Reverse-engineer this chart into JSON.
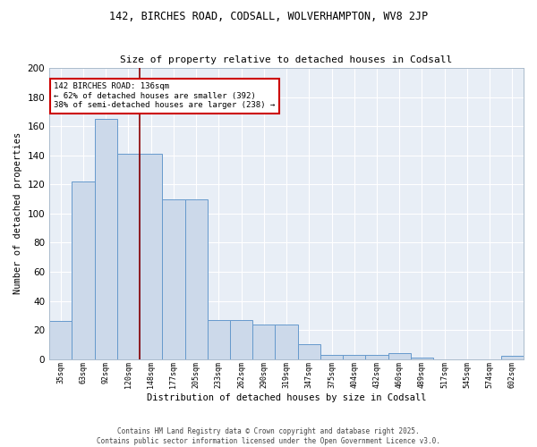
{
  "title1": "142, BIRCHES ROAD, CODSALL, WOLVERHAMPTON, WV8 2JP",
  "title2": "Size of property relative to detached houses in Codsall",
  "xlabel": "Distribution of detached houses by size in Codsall",
  "ylabel": "Number of detached properties",
  "bar_values": [
    26,
    122,
    165,
    141,
    141,
    110,
    110,
    27,
    27,
    24,
    24,
    10,
    3,
    3,
    3,
    4,
    1,
    0,
    0,
    0,
    2
  ],
  "categories": [
    "35sqm",
    "63sqm",
    "92sqm",
    "120sqm",
    "148sqm",
    "177sqm",
    "205sqm",
    "233sqm",
    "262sqm",
    "290sqm",
    "319sqm",
    "347sqm",
    "375sqm",
    "404sqm",
    "432sqm",
    "460sqm",
    "489sqm",
    "517sqm",
    "545sqm",
    "574sqm",
    "602sqm"
  ],
  "bar_color": "#ccd9ea",
  "bar_edge_color": "#6699cc",
  "vline_x": 3.5,
  "vline_color": "#8b0000",
  "annotation_text": "142 BIRCHES ROAD: 136sqm\n← 62% of detached houses are smaller (392)\n38% of semi-detached houses are larger (238) →",
  "annotation_box_color": "#ffffff",
  "annotation_border_color": "#cc0000",
  "ylim": [
    0,
    200
  ],
  "yticks": [
    0,
    20,
    40,
    60,
    80,
    100,
    120,
    140,
    160,
    180,
    200
  ],
  "background_color": "#e8eef6",
  "grid_color": "#d0d8e8",
  "footer1": "Contains HM Land Registry data © Crown copyright and database right 2025.",
  "footer2": "Contains public sector information licensed under the Open Government Licence v3.0."
}
